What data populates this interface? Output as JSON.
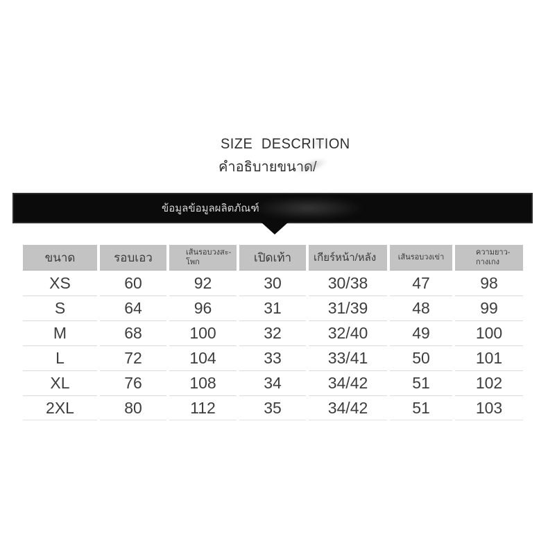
{
  "header": {
    "title": "SIZE DESCRITION",
    "subtitle_th": "คำอธิบายขนาด/"
  },
  "banner": {
    "label_th": "ข้อมูลข้อมูลผลิตภัณฑ์"
  },
  "colors": {
    "page_bg": "#ffffff",
    "banner_bg": "#0b0b0b",
    "banner_text": "#d6d6d6",
    "table_header_bg": "#c3c3c3",
    "table_text": "#3d3d3d",
    "row_divider": "#dadada"
  },
  "chart_data": {
    "type": "table",
    "title": "SIZE DESCRITION",
    "columns": [
      "ขนาด",
      "รอบเอว",
      "เส้นรอบวงสะ-\nโพก",
      "เปิดเท้า",
      "เกียร์หน้า/หลัง",
      "เส้นรอบวงเข่า",
      "ความยาว-\nกางเกง"
    ],
    "rows": [
      [
        "XS",
        "60",
        "92",
        "30",
        "30/38",
        "47",
        "98"
      ],
      [
        "S",
        "64",
        "96",
        "31",
        "31/39",
        "48",
        "99"
      ],
      [
        "M",
        "68",
        "100",
        "32",
        "32/40",
        "49",
        "100"
      ],
      [
        "L",
        "72",
        "104",
        "33",
        "33/41",
        "50",
        "101"
      ],
      [
        "XL",
        "76",
        "108",
        "34",
        "34/42",
        "51",
        "102"
      ],
      [
        "2XL",
        "80",
        "112",
        "35",
        "34/42",
        "51",
        "103"
      ]
    ]
  }
}
